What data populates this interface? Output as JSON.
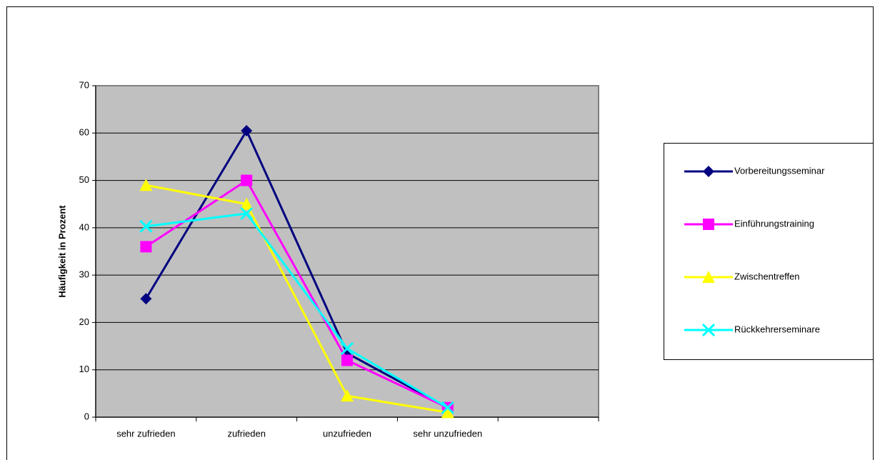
{
  "chart_data": {
    "type": "line",
    "y_label": "Häufigkeit in Prozent",
    "categories": [
      "sehr zufrieden",
      "zufrieden",
      "unzufrieden",
      "sehr unzufrieden",
      null
    ],
    "series": [
      {
        "name": "Vorbereitungsseminar",
        "color": "#000080",
        "marker": "diamond",
        "values": [
          25,
          60.5,
          13.5,
          2,
          null
        ]
      },
      {
        "name": "Einführungstraining",
        "color": "#ff00ff",
        "marker": "square",
        "values": [
          36,
          50,
          12,
          2,
          null
        ]
      },
      {
        "name": "Zwischentreffen",
        "color": "#ffff00",
        "marker": "triangle",
        "values": [
          49,
          45,
          4.5,
          1,
          null
        ]
      },
      {
        "name": "Rückkehrerseminare",
        "color": "#00ffff",
        "marker": "x",
        "values": [
          40.3,
          43,
          14.5,
          2,
          null
        ]
      }
    ],
    "ylim": [
      0,
      70
    ],
    "yticks": [
      0,
      10,
      20,
      30,
      40,
      50,
      60,
      70
    ],
    "grid": true,
    "legend": "right"
  }
}
